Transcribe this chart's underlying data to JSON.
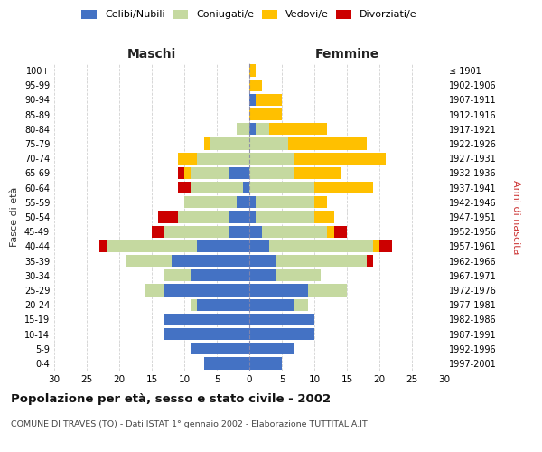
{
  "age_groups": [
    "0-4",
    "5-9",
    "10-14",
    "15-19",
    "20-24",
    "25-29",
    "30-34",
    "35-39",
    "40-44",
    "45-49",
    "50-54",
    "55-59",
    "60-64",
    "65-69",
    "70-74",
    "75-79",
    "80-84",
    "85-89",
    "90-94",
    "95-99",
    "100+"
  ],
  "birth_years": [
    "1997-2001",
    "1992-1996",
    "1987-1991",
    "1982-1986",
    "1977-1981",
    "1972-1976",
    "1967-1971",
    "1962-1966",
    "1957-1961",
    "1952-1956",
    "1947-1951",
    "1942-1946",
    "1937-1941",
    "1932-1936",
    "1927-1931",
    "1922-1926",
    "1917-1921",
    "1912-1916",
    "1907-1911",
    "1902-1906",
    "≤ 1901"
  ],
  "males": {
    "celibi": [
      7,
      9,
      13,
      13,
      8,
      13,
      9,
      12,
      8,
      3,
      3,
      2,
      1,
      3,
      0,
      0,
      0,
      0,
      0,
      0,
      0
    ],
    "coniugati": [
      0,
      0,
      0,
      0,
      1,
      3,
      4,
      7,
      14,
      10,
      8,
      8,
      8,
      6,
      8,
      6,
      2,
      0,
      0,
      0,
      0
    ],
    "vedovi": [
      0,
      0,
      0,
      0,
      0,
      0,
      0,
      0,
      0,
      0,
      0,
      0,
      0,
      1,
      3,
      1,
      0,
      0,
      0,
      0,
      0
    ],
    "divorziati": [
      0,
      0,
      0,
      0,
      0,
      0,
      0,
      0,
      1,
      2,
      3,
      0,
      2,
      1,
      0,
      0,
      0,
      0,
      0,
      0,
      0
    ]
  },
  "females": {
    "nubili": [
      5,
      7,
      10,
      10,
      7,
      9,
      4,
      4,
      3,
      2,
      1,
      1,
      0,
      0,
      0,
      0,
      1,
      0,
      1,
      0,
      0
    ],
    "coniugate": [
      0,
      0,
      0,
      0,
      2,
      6,
      7,
      14,
      16,
      10,
      9,
      9,
      10,
      7,
      7,
      6,
      2,
      0,
      0,
      0,
      0
    ],
    "vedove": [
      0,
      0,
      0,
      0,
      0,
      0,
      0,
      0,
      1,
      1,
      3,
      2,
      9,
      7,
      14,
      12,
      9,
      5,
      4,
      2,
      1
    ],
    "divorziate": [
      0,
      0,
      0,
      0,
      0,
      0,
      0,
      1,
      2,
      2,
      0,
      0,
      0,
      0,
      0,
      0,
      0,
      0,
      0,
      0,
      0
    ]
  },
  "colors": {
    "celibi": "#4472c4",
    "coniugati": "#c5d9a0",
    "vedovi": "#ffc000",
    "divorziati": "#cc0000"
  },
  "title": "Popolazione per età, sesso e stato civile - 2002",
  "subtitle": "COMUNE DI TRAVES (TO) - Dati ISTAT 1° gennaio 2002 - Elaborazione TUTTITALIA.IT",
  "xlabel_left": "Maschi",
  "xlabel_right": "Femmine",
  "ylabel_left": "Fasce di età",
  "ylabel_right": "Anni di nascita",
  "xlim": 30,
  "legend_labels": [
    "Celibi/Nubili",
    "Coniugati/e",
    "Vedovi/e",
    "Divorziati/e"
  ],
  "bg_color": "#ffffff",
  "grid_color": "#cccccc"
}
